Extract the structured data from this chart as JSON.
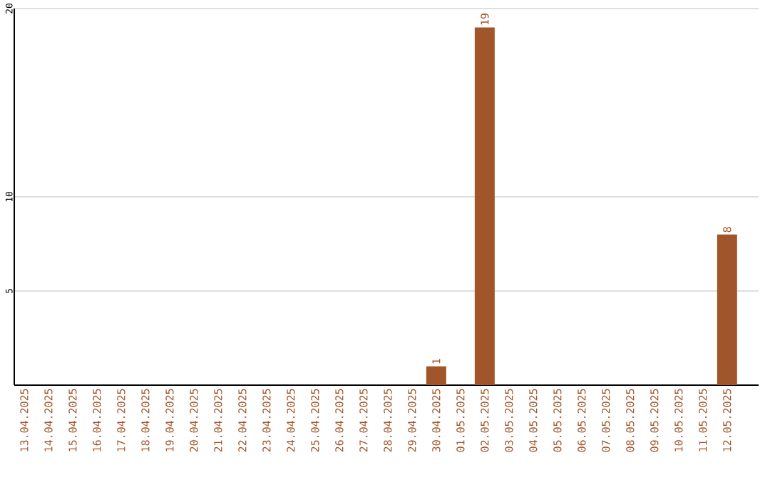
{
  "chart_data": {
    "type": "bar",
    "categories": [
      "13.04.2025",
      "14.04.2025",
      "15.04.2025",
      "16.04.2025",
      "17.04.2025",
      "18.04.2025",
      "19.04.2025",
      "20.04.2025",
      "21.04.2025",
      "22.04.2025",
      "23.04.2025",
      "24.04.2025",
      "25.04.2025",
      "26.04.2025",
      "27.04.2025",
      "28.04.2025",
      "29.04.2025",
      "30.04.2025",
      "01.05.2025",
      "02.05.2025",
      "03.05.2025",
      "04.05.2025",
      "05.05.2025",
      "06.05.2025",
      "07.05.2025",
      "08.05.2025",
      "09.05.2025",
      "10.05.2025",
      "11.05.2025",
      "12.05.2025"
    ],
    "values": [
      0,
      0,
      0,
      0,
      0,
      0,
      0,
      0,
      0,
      0,
      0,
      0,
      0,
      0,
      0,
      0,
      0,
      1,
      0,
      19,
      0,
      0,
      0,
      0,
      0,
      0,
      0,
      0,
      0,
      8
    ],
    "value_labels": [
      null,
      null,
      null,
      null,
      null,
      null,
      null,
      null,
      null,
      null,
      null,
      null,
      null,
      null,
      null,
      null,
      null,
      "1",
      null,
      "19",
      null,
      null,
      null,
      null,
      null,
      null,
      null,
      null,
      null,
      "8"
    ],
    "color": "#a0562a",
    "ylim": [
      0,
      20
    ],
    "yticks": [
      5,
      10,
      20
    ],
    "grid": "y"
  }
}
